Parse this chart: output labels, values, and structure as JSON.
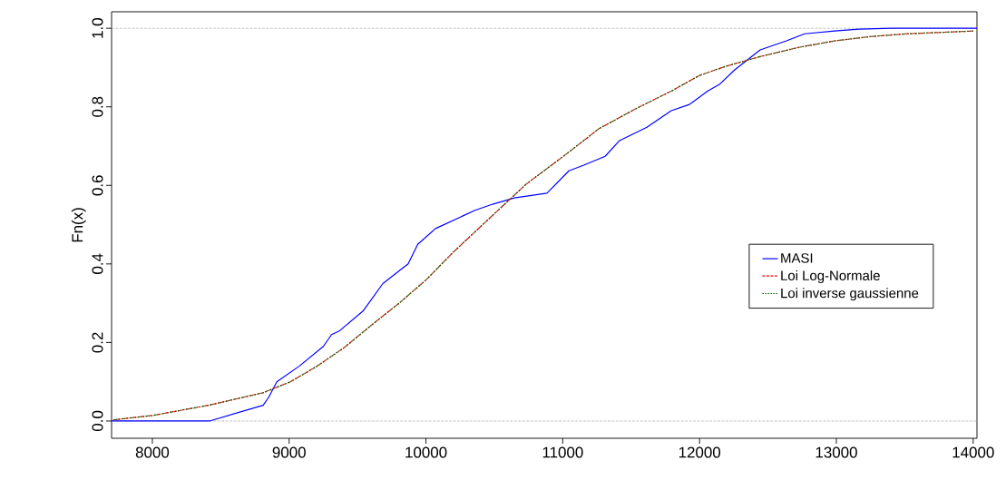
{
  "chart_data": {
    "type": "line",
    "ylabel": "Fn(x)",
    "xlim": [
      7702,
      14028
    ],
    "ylim": [
      -0.044,
      1.042
    ],
    "xticks": [
      8000,
      9000,
      10000,
      11000,
      12000,
      13000,
      14000
    ],
    "yticks": [
      {
        "value": 0,
        "label": "0.0"
      },
      {
        "value": 0.2,
        "label": "0.2"
      },
      {
        "value": 0.4,
        "label": "0.4"
      },
      {
        "value": 0.6,
        "label": "0.6"
      },
      {
        "value": 0.8,
        "label": "0.8"
      },
      {
        "value": 1,
        "label": "1.0"
      }
    ],
    "grid": false,
    "legend": "right",
    "marker": "none",
    "ref_lines": [
      {
        "axis": "y",
        "value": 0,
        "color": "#bebebe",
        "line_style": "dashed"
      },
      {
        "axis": "y",
        "value": 1,
        "color": "#bebebe",
        "line_style": "dashed"
      }
    ],
    "series": [
      {
        "name": "MASI",
        "color": "#0000ff",
        "line_style": "solid",
        "x": [
          7702,
          8418,
          8810,
          8850,
          8910,
          9075,
          9250,
          9310,
          9370,
          9540,
          9685,
          9870,
          9940,
          10070,
          10355,
          10487,
          10646,
          10885,
          11045,
          11150,
          11310,
          11415,
          11615,
          11793,
          11926,
          12058,
          12145,
          12257,
          12443,
          12635,
          12768,
          12987,
          13166,
          13405,
          14028
        ],
        "values": [
          0,
          0,
          0.04,
          0.06,
          0.1,
          0.14,
          0.19,
          0.22,
          0.23,
          0.28,
          0.35,
          0.4,
          0.45,
          0.49,
          0.536,
          0.552,
          0.568,
          0.58,
          0.637,
          0.651,
          0.674,
          0.714,
          0.748,
          0.79,
          0.806,
          0.84,
          0.857,
          0.894,
          0.945,
          0.968,
          0.986,
          0.993,
          0.998,
          1,
          1
        ]
      },
      {
        "name": "Loi Log-Normale",
        "color": "#ff0000",
        "line_style": "dashed",
        "x": [
          7715,
          8000,
          8410,
          8810,
          9010,
          9205,
          9403,
          9605,
          9804,
          10003,
          10200,
          10467,
          10732,
          10997,
          11263,
          11528,
          11793,
          12000,
          12190,
          12443,
          12720,
          12987,
          13252,
          13517,
          14000
        ],
        "values": [
          0.003,
          0.014,
          0.04,
          0.072,
          0.1,
          0.14,
          0.187,
          0.245,
          0.3,
          0.36,
          0.43,
          0.517,
          0.603,
          0.672,
          0.744,
          0.794,
          0.84,
          0.88,
          0.903,
          0.928,
          0.951,
          0.968,
          0.979,
          0.986,
          0.993
        ]
      },
      {
        "name": "Loi inverse gaussienne",
        "color": "#006400",
        "line_style": "dotted",
        "x": [
          7715,
          8000,
          8410,
          8810,
          9010,
          9205,
          9403,
          9605,
          9804,
          10003,
          10200,
          10467,
          10732,
          10997,
          11263,
          11528,
          11793,
          12000,
          12190,
          12443,
          12720,
          12987,
          13252,
          13517,
          14000
        ],
        "values": [
          0.003,
          0.014,
          0.04,
          0.072,
          0.1,
          0.14,
          0.187,
          0.245,
          0.3,
          0.36,
          0.43,
          0.517,
          0.603,
          0.672,
          0.744,
          0.794,
          0.84,
          0.88,
          0.903,
          0.928,
          0.951,
          0.968,
          0.979,
          0.986,
          0.993
        ]
      }
    ]
  }
}
